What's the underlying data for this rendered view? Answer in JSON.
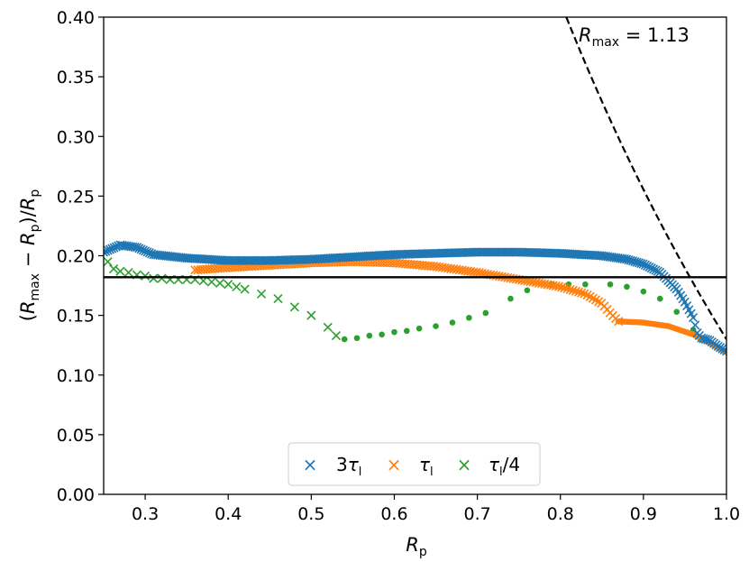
{
  "chart_data": {
    "type": "scatter",
    "xlabel": "R_p",
    "ylabel": "(R_max − R_p)/R_p",
    "xlim": [
      0.25,
      1.0
    ],
    "ylim": [
      0.0,
      0.4
    ],
    "x_ticks": [
      "0.3",
      "0.4",
      "0.5",
      "0.6",
      "0.7",
      "0.8",
      "0.9",
      "1.0"
    ],
    "y_ticks": [
      "0.00",
      "0.05",
      "0.10",
      "0.15",
      "0.20",
      "0.25",
      "0.30",
      "0.35",
      "0.40"
    ],
    "colors": {
      "s1": "#1f77b4",
      "s2": "#ff7f0e",
      "s3": "#2ca02c",
      "line": "#000000"
    },
    "reference_line": {
      "y": 0.182
    },
    "rmax_curve": {
      "label": "R_max = 1.13",
      "rmax": 1.13
    },
    "series": [
      {
        "name": "3τ_l",
        "marker": "x",
        "anchors": [
          [
            0.25,
            0.203
          ],
          [
            0.27,
            0.209
          ],
          [
            0.29,
            0.207
          ],
          [
            0.31,
            0.201
          ],
          [
            0.35,
            0.198
          ],
          [
            0.4,
            0.196
          ],
          [
            0.45,
            0.196
          ],
          [
            0.5,
            0.197
          ],
          [
            0.55,
            0.199
          ],
          [
            0.6,
            0.201
          ],
          [
            0.65,
            0.202
          ],
          [
            0.7,
            0.203
          ],
          [
            0.75,
            0.203
          ],
          [
            0.8,
            0.202
          ],
          [
            0.85,
            0.2
          ],
          [
            0.88,
            0.197
          ],
          [
            0.9,
            0.193
          ],
          [
            0.92,
            0.186
          ],
          [
            0.94,
            0.172
          ],
          [
            0.95,
            0.161
          ],
          [
            0.96,
            0.148
          ],
          [
            0.965,
            0.135
          ],
          [
            0.97,
            0.131
          ],
          [
            0.98,
            0.129
          ],
          [
            0.99,
            0.124
          ],
          [
            1.0,
            0.12
          ]
        ],
        "n": 300
      },
      {
        "name": "τ_l",
        "marker": "x",
        "anchors": [
          [
            0.36,
            0.188
          ],
          [
            0.4,
            0.19
          ],
          [
            0.45,
            0.192
          ],
          [
            0.5,
            0.194
          ],
          [
            0.55,
            0.195
          ],
          [
            0.6,
            0.194
          ],
          [
            0.65,
            0.191
          ],
          [
            0.7,
            0.186
          ],
          [
            0.75,
            0.18
          ],
          [
            0.8,
            0.174
          ],
          [
            0.83,
            0.168
          ],
          [
            0.85,
            0.16
          ],
          [
            0.86,
            0.152
          ],
          [
            0.87,
            0.145
          ]
        ],
        "n": 150
      },
      {
        "name": "τ_l",
        "marker": "o",
        "anchors": [
          [
            0.87,
            0.145
          ],
          [
            0.9,
            0.144
          ],
          [
            0.93,
            0.141
          ],
          [
            0.96,
            0.134
          ],
          [
            0.98,
            0.127
          ],
          [
            1.0,
            0.119
          ]
        ],
        "n": 55
      },
      {
        "name": "τ_l/4",
        "marker": "x",
        "points": [
          [
            0.255,
            0.195
          ],
          [
            0.262,
            0.189
          ],
          [
            0.27,
            0.187
          ],
          [
            0.28,
            0.186
          ],
          [
            0.29,
            0.184
          ],
          [
            0.3,
            0.183
          ],
          [
            0.31,
            0.181
          ],
          [
            0.32,
            0.181
          ],
          [
            0.33,
            0.18
          ],
          [
            0.34,
            0.18
          ],
          [
            0.35,
            0.18
          ],
          [
            0.36,
            0.18
          ],
          [
            0.37,
            0.179
          ],
          [
            0.38,
            0.178
          ],
          [
            0.39,
            0.177
          ],
          [
            0.4,
            0.176
          ],
          [
            0.41,
            0.174
          ],
          [
            0.42,
            0.172
          ],
          [
            0.44,
            0.168
          ],
          [
            0.46,
            0.164
          ],
          [
            0.48,
            0.157
          ],
          [
            0.5,
            0.15
          ],
          [
            0.52,
            0.14
          ],
          [
            0.53,
            0.133
          ]
        ]
      },
      {
        "name": "τ_l/4",
        "marker": "o",
        "points": [
          [
            0.54,
            0.13
          ],
          [
            0.555,
            0.131
          ],
          [
            0.57,
            0.133
          ],
          [
            0.585,
            0.134
          ],
          [
            0.6,
            0.136
          ],
          [
            0.615,
            0.137
          ],
          [
            0.63,
            0.139
          ],
          [
            0.65,
            0.141
          ],
          [
            0.67,
            0.144
          ],
          [
            0.69,
            0.148
          ],
          [
            0.71,
            0.152
          ],
          [
            0.74,
            0.164
          ],
          [
            0.76,
            0.171
          ],
          [
            0.79,
            0.176
          ],
          [
            0.81,
            0.176
          ],
          [
            0.83,
            0.176
          ],
          [
            0.86,
            0.176
          ],
          [
            0.88,
            0.174
          ],
          [
            0.9,
            0.17
          ],
          [
            0.92,
            0.164
          ],
          [
            0.94,
            0.153
          ],
          [
            0.96,
            0.138
          ],
          [
            0.97,
            0.13
          ]
        ]
      }
    ],
    "legend": {
      "placement": "lower center",
      "entries": [
        {
          "symbol": "×",
          "label": "3τ_l",
          "color": "#1f77b4"
        },
        {
          "symbol": "×",
          "label": "τ_l",
          "color": "#ff7f0e"
        },
        {
          "symbol": "×",
          "label": "τ_l/4",
          "color": "#2ca02c"
        }
      ]
    }
  }
}
